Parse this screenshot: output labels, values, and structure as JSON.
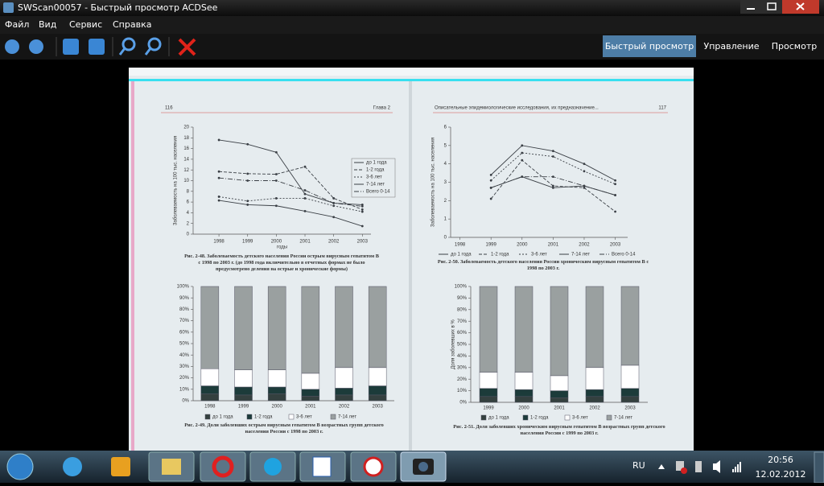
{
  "window": {
    "title": "SWScan00057 - Быстрый просмотр ACDSee"
  },
  "menu": [
    "Файл",
    "Вид",
    "Сервис",
    "Справка"
  ],
  "modes": [
    "Быстрый просмотр",
    "Управление",
    "Просмотр"
  ],
  "scan": {
    "left_page": {
      "number": "116",
      "chapter": "Глава 2"
    },
    "right_page": {
      "running_head": "Описательные эпидемиологические исследования, их предназначение...",
      "number": "117"
    }
  },
  "chart_data": [
    {
      "type": "line",
      "title": "Рис. 2-48. Заболеваемость детского населения России острым вирусным гепатитом В с 1998 по 2003 г. (до 1998 года включительно в отчетных формах не было предусмотрено деления на острые и хронические формы)",
      "x_label": "годы",
      "y_label": "Заболеваемость на 100 тыс. населения",
      "x": [
        1998,
        1999,
        2000,
        2001,
        2002,
        2003
      ],
      "xlim": [
        1997.1,
        2003.3
      ],
      "xticks": [
        1998,
        1999,
        2000,
        2001,
        2002,
        2003
      ],
      "ylim": [
        0,
        20
      ],
      "yticks": [
        0,
        2,
        4,
        6,
        8,
        10,
        12,
        14,
        16,
        18,
        20
      ],
      "legend": "right",
      "series": [
        {
          "name": "до 1 года",
          "color": "#3a3f45",
          "values": [
            17.6,
            16.8,
            15.3,
            7.5,
            5.8,
            5.5
          ]
        },
        {
          "name": "1-2 года",
          "color": "#3a3f45",
          "values": [
            11.7,
            11.3,
            11.2,
            12.6,
            6.7,
            4.6
          ]
        },
        {
          "name": "3-6 лет",
          "color": "#3a3f45",
          "values": [
            7.0,
            6.2,
            6.7,
            6.7,
            5.3,
            4.2
          ]
        },
        {
          "name": "7-14 лет",
          "color": "#3a3f45",
          "values": [
            6.3,
            5.5,
            5.3,
            4.3,
            3.2,
            1.5
          ]
        },
        {
          "name": "Всего 0-14",
          "color": "#3a3f45",
          "values": [
            10.5,
            10.0,
            10.0,
            8.2,
            5.8,
            5.2
          ]
        }
      ]
    },
    {
      "type": "line",
      "title": "Рис. 2-50. Заболеваемость детского населения России хроническим вирусным гепатитом В с 1998 по 2003 г.",
      "y_label": "Заболеваемость на 100 тыс. населения",
      "x": [
        1998,
        1999,
        2000,
        2001,
        2002,
        2003
      ],
      "xlim": [
        1997.7,
        2003.4
      ],
      "xticks": [
        1998,
        1999,
        2000,
        2001,
        2002,
        2003
      ],
      "ylim": [
        0,
        6
      ],
      "yticks": [
        0,
        1,
        2,
        3,
        4,
        5,
        6
      ],
      "legend": "bottom",
      "series": [
        {
          "name": "до 1 года",
          "color": "#3a3f45",
          "values": [
            null,
            2.7,
            3.3,
            2.7,
            2.8,
            2.3
          ]
        },
        {
          "name": "1-2 года",
          "color": "#3a3f45",
          "values": [
            null,
            2.1,
            4.2,
            2.8,
            2.7,
            1.4
          ]
        },
        {
          "name": "3-6 лет",
          "color": "#3a3f45",
          "values": [
            null,
            3.1,
            4.6,
            4.4,
            3.6,
            2.9
          ]
        },
        {
          "name": "7-14 лет",
          "color": "#3a3f45",
          "values": [
            null,
            3.4,
            5.0,
            4.7,
            4.0,
            3.1
          ]
        },
        {
          "name": "Всего 0-14",
          "color": "#3a3f45",
          "values": [
            null,
            2.7,
            3.3,
            3.3,
            2.8,
            2.3
          ]
        }
      ]
    },
    {
      "type": "stacked_bar",
      "title": "Рис. 2-49. Доли заболевших острым вирусным гепатитом В возрастных групп детского населения России с 1998 по 2003 г.",
      "categories": [
        "1998",
        "1999",
        "2000",
        "2001",
        "2002",
        "2003"
      ],
      "ylim": [
        0,
        100
      ],
      "yticks": [
        {
          "value": 0,
          "label": "0%"
        },
        {
          "value": 10,
          "label": "10%"
        },
        {
          "value": 20,
          "label": "20%"
        },
        {
          "value": 30,
          "label": "30%"
        },
        {
          "value": 40,
          "label": "40%"
        },
        {
          "value": 50,
          "label": "50%"
        },
        {
          "value": 60,
          "label": "60%"
        },
        {
          "value": 70,
          "label": "70%"
        },
        {
          "value": 80,
          "label": "80%"
        },
        {
          "value": 90,
          "label": "90%"
        },
        {
          "value": 100,
          "label": "100%"
        }
      ],
      "legend": "bottom",
      "series": [
        {
          "name": "до 1 года",
          "color": "#34403f",
          "values": [
            6,
            5,
            6,
            4,
            5,
            5
          ]
        },
        {
          "name": "1-2 года",
          "color": "#1c3b3a",
          "values": [
            7,
            7,
            6,
            6,
            6,
            8
          ]
        },
        {
          "name": "3-6 лет",
          "color": "#ffffff",
          "values": [
            15,
            15,
            15,
            14,
            18,
            16
          ]
        },
        {
          "name": "7-14 лет",
          "color": "#9aa0a0",
          "values": [
            72,
            73,
            73,
            76,
            71,
            71
          ]
        }
      ]
    },
    {
      "type": "stacked_bar",
      "title": "Рис. 2-51. Доля заболевших хроническим вирусным гепатитом В возрастных групп детского населения России с 1999 по 2003 г.",
      "y_label": "Доля заболевших в %",
      "categories": [
        "1999",
        "2000",
        "2001",
        "2002",
        "2003"
      ],
      "ylim": [
        0,
        100
      ],
      "yticks": [
        {
          "value": 0,
          "label": "0%"
        },
        {
          "value": 10,
          "label": "10%"
        },
        {
          "value": 20,
          "label": "20%"
        },
        {
          "value": 30,
          "label": "30%"
        },
        {
          "value": 40,
          "label": "40%"
        },
        {
          "value": 50,
          "label": "50%"
        },
        {
          "value": 60,
          "label": "60%"
        },
        {
          "value": 70,
          "label": "70%"
        },
        {
          "value": 80,
          "label": "80%"
        },
        {
          "value": 90,
          "label": "90%"
        },
        {
          "value": 100,
          "label": "100%"
        }
      ],
      "legend": "bottom",
      "series": [
        {
          "name": "до 1 года",
          "color": "#34403f",
          "values": [
            5,
            5,
            4,
            5,
            5
          ]
        },
        {
          "name": "1-2 года",
          "color": "#1c3b3a",
          "values": [
            7,
            6,
            6,
            6,
            7
          ]
        },
        {
          "name": "3-6 лет",
          "color": "#ffffff",
          "values": [
            14,
            15,
            13,
            19,
            20
          ]
        },
        {
          "name": "7-14 лет",
          "color": "#9aa0a0",
          "values": [
            74,
            74,
            77,
            70,
            68
          ]
        }
      ]
    }
  ],
  "taskbar": {
    "language": "RU",
    "time": "20:56",
    "date": "12.02.2012"
  }
}
